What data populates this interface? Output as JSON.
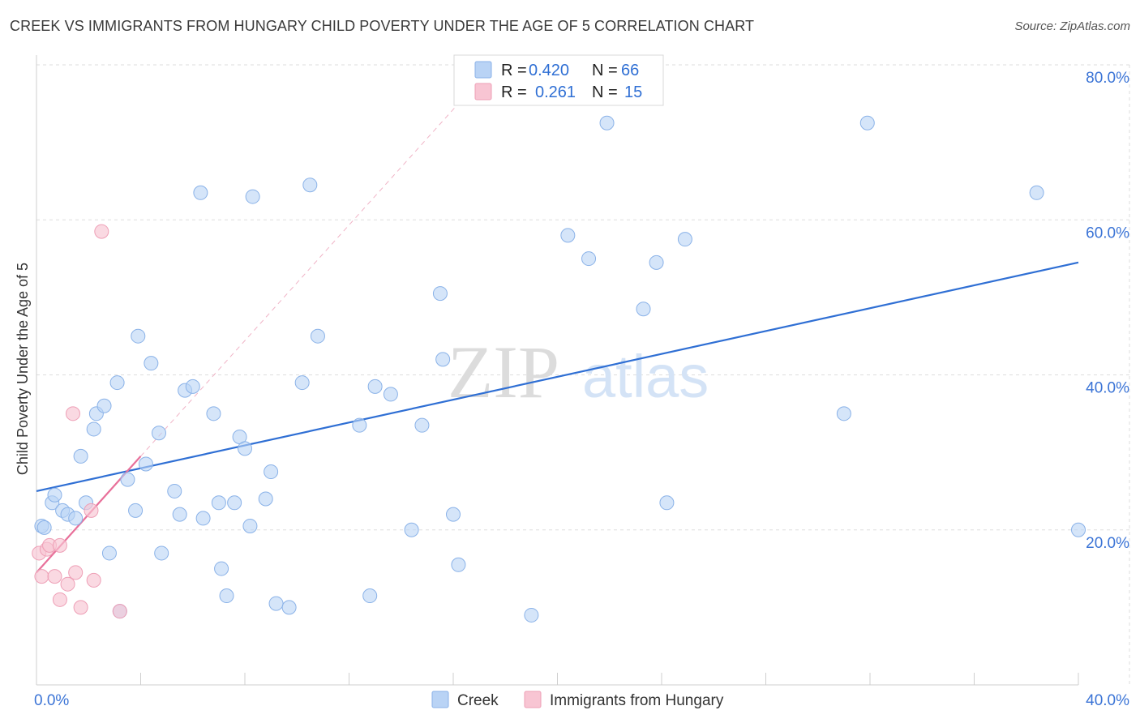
{
  "header": {
    "title": "CREEK VS IMMIGRANTS FROM HUNGARY CHILD POVERTY UNDER THE AGE OF 5 CORRELATION CHART",
    "source": "Source: ZipAtlas.com"
  },
  "watermark": {
    "zip": "ZIP",
    "atlas": "atlas"
  },
  "legend": {
    "rows": [
      {
        "r_label": "R =",
        "r_value": "0.420",
        "n_label": "N =",
        "n_value": "66"
      },
      {
        "r_label": "R =",
        "r_value": "0.261",
        "n_label": "N =",
        "n_value": "15"
      }
    ]
  },
  "bottom_legend": {
    "creek": "Creek",
    "hungary": "Immigrants from Hungary"
  },
  "colors": {
    "creek_fill": "#b9d3f5",
    "creek_stroke": "#8ab2e8",
    "creek_line": "#2f6fd4",
    "hungary_fill": "#f8c5d3",
    "hungary_stroke": "#ee9fb6",
    "hungary_line": "#e8709a",
    "grid": "#dddddd",
    "tick_text": "#3b74d6"
  },
  "chart_data": {
    "type": "scatter",
    "title": "CREEK VS IMMIGRANTS FROM HUNGARY CHILD POVERTY UNDER THE AGE OF 5 CORRELATION CHART",
    "xlabel": "",
    "ylabel": "Child Poverty Under the Age of 5",
    "xlim": [
      0,
      40
    ],
    "ylim": [
      0,
      80
    ],
    "x_tick_labels": [
      "0.0%",
      "40.0%"
    ],
    "y_ticks": [
      20,
      40,
      60,
      80
    ],
    "y_tick_labels": [
      "20.0%",
      "40.0%",
      "60.0%",
      "80.0%"
    ],
    "series": [
      {
        "name": "Creek",
        "R": 0.42,
        "N": 66,
        "trend": {
          "x": [
            0,
            40
          ],
          "y": [
            25.0,
            54.5
          ]
        },
        "points": [
          [
            0.2,
            20.5
          ],
          [
            0.3,
            20.3
          ],
          [
            0.6,
            23.5
          ],
          [
            0.7,
            24.5
          ],
          [
            1.0,
            22.5
          ],
          [
            1.2,
            22.0
          ],
          [
            1.5,
            21.5
          ],
          [
            1.7,
            29.5
          ],
          [
            1.9,
            23.5
          ],
          [
            2.2,
            33.0
          ],
          [
            2.3,
            35.0
          ],
          [
            2.6,
            36.0
          ],
          [
            2.8,
            17.0
          ],
          [
            3.1,
            39.0
          ],
          [
            3.2,
            9.5
          ],
          [
            3.5,
            26.5
          ],
          [
            3.8,
            22.5
          ],
          [
            3.9,
            45.0
          ],
          [
            4.2,
            28.5
          ],
          [
            4.4,
            41.5
          ],
          [
            4.7,
            32.5
          ],
          [
            4.8,
            17.0
          ],
          [
            5.3,
            25.0
          ],
          [
            5.5,
            22.0
          ],
          [
            5.7,
            38.0
          ],
          [
            6.0,
            38.5
          ],
          [
            6.3,
            63.5
          ],
          [
            6.4,
            21.5
          ],
          [
            6.8,
            35.0
          ],
          [
            7.0,
            23.5
          ],
          [
            7.1,
            15.0
          ],
          [
            7.3,
            11.5
          ],
          [
            7.6,
            23.5
          ],
          [
            7.8,
            32.0
          ],
          [
            8.0,
            30.5
          ],
          [
            8.2,
            20.5
          ],
          [
            8.3,
            63.0
          ],
          [
            8.8,
            24.0
          ],
          [
            9.0,
            27.5
          ],
          [
            9.2,
            10.5
          ],
          [
            9.7,
            10.0
          ],
          [
            10.2,
            39.0
          ],
          [
            10.5,
            64.5
          ],
          [
            10.8,
            45.0
          ],
          [
            12.4,
            33.5
          ],
          [
            12.8,
            11.5
          ],
          [
            13.0,
            38.5
          ],
          [
            13.6,
            37.5
          ],
          [
            14.4,
            20.0
          ],
          [
            14.8,
            33.5
          ],
          [
            15.5,
            50.5
          ],
          [
            15.6,
            42.0
          ],
          [
            16.0,
            22.0
          ],
          [
            16.2,
            15.5
          ],
          [
            19.0,
            9.0
          ],
          [
            20.4,
            58.0
          ],
          [
            21.2,
            55.0
          ],
          [
            21.9,
            72.5
          ],
          [
            23.3,
            48.5
          ],
          [
            23.8,
            54.5
          ],
          [
            24.2,
            23.5
          ],
          [
            24.9,
            57.5
          ],
          [
            31.0,
            35.0
          ],
          [
            31.9,
            72.5
          ],
          [
            38.4,
            63.5
          ],
          [
            40.0,
            20.0
          ]
        ]
      },
      {
        "name": "Immigrants from Hungary",
        "R": 0.261,
        "N": 15,
        "trend": {
          "x": [
            0,
            4.0
          ],
          "y": [
            14.5,
            29.5
          ]
        },
        "trend_extension": {
          "x": [
            4.0,
            16.2
          ],
          "y": [
            29.5,
            75.0
          ]
        },
        "points": [
          [
            0.1,
            17.0
          ],
          [
            0.2,
            14.0
          ],
          [
            0.4,
            17.5
          ],
          [
            0.5,
            18.0
          ],
          [
            0.7,
            14.0
          ],
          [
            0.9,
            11.0
          ],
          [
            0.9,
            18.0
          ],
          [
            1.2,
            13.0
          ],
          [
            1.4,
            35.0
          ],
          [
            1.5,
            14.5
          ],
          [
            1.7,
            10.0
          ],
          [
            2.1,
            22.5
          ],
          [
            2.2,
            13.5
          ],
          [
            2.5,
            58.5
          ],
          [
            3.2,
            9.5
          ]
        ]
      }
    ]
  }
}
